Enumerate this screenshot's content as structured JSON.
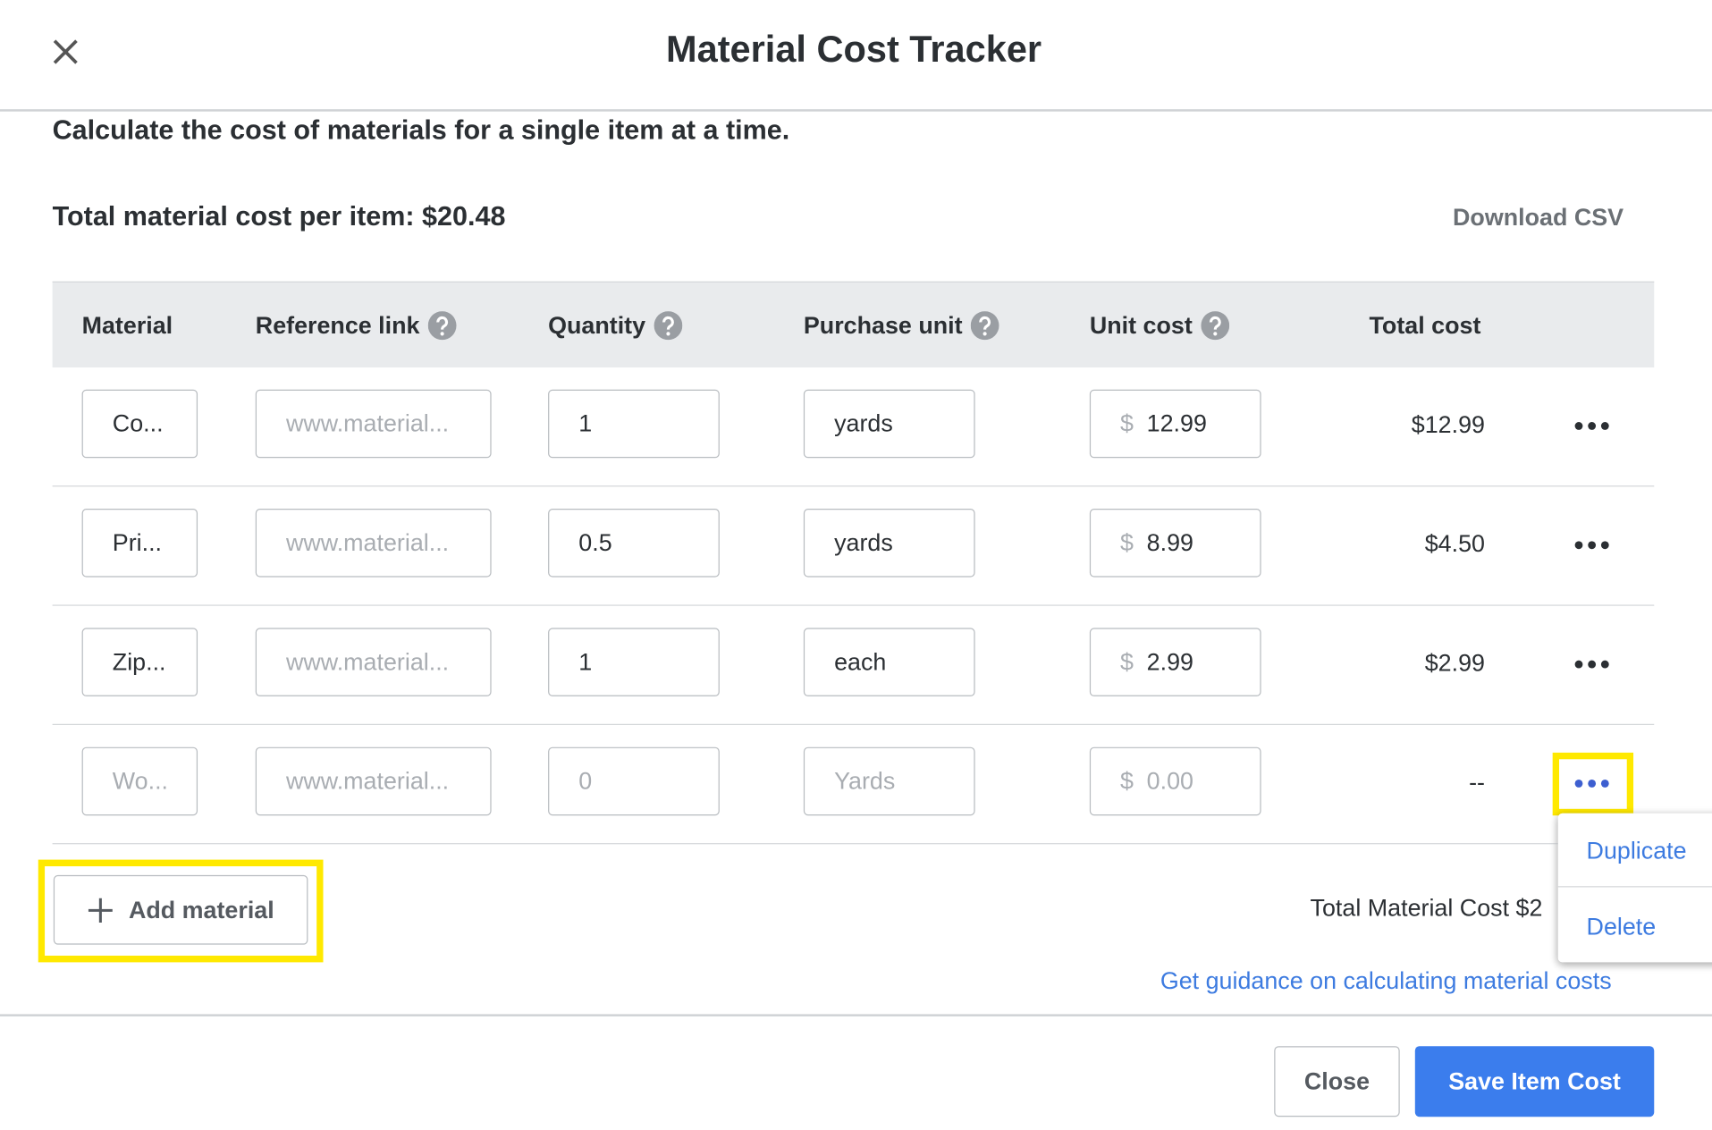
{
  "header": {
    "title": "Material Cost Tracker"
  },
  "description": "Calculate the cost of materials for a single item at a time.",
  "total_label": "Total material cost per item: $20.48",
  "download": "Download CSV",
  "currency_symbol": "$",
  "table": {
    "columns": [
      "Material",
      "Reference link",
      "Quantity",
      "Purchase unit",
      "Unit cost",
      "Total cost"
    ],
    "rows": [
      {
        "material": "Co...",
        "link": "www.material...",
        "quantity": "1",
        "unit": "yards",
        "cost": "12.99",
        "total": "$12.99"
      },
      {
        "material": "Pri...",
        "link": "www.material...",
        "quantity": "0.5",
        "unit": "yards",
        "cost": "8.99",
        "total": "$4.50"
      },
      {
        "material": "Zip...",
        "link": "www.material...",
        "quantity": "1",
        "unit": "each",
        "cost": "2.99",
        "total": "$2.99"
      },
      {
        "material": "Wo...",
        "link": "www.material...",
        "quantity": "0",
        "unit": "Yards",
        "cost": "0.00",
        "total": "--"
      }
    ]
  },
  "menu": [
    "Duplicate",
    "Delete"
  ],
  "add_button": "Add material",
  "total_material_cost": "Total Material Cost $2",
  "guidance_link": "Get guidance on calculating material costs",
  "footer": {
    "close": "Close",
    "save": "Save Item Cost"
  }
}
